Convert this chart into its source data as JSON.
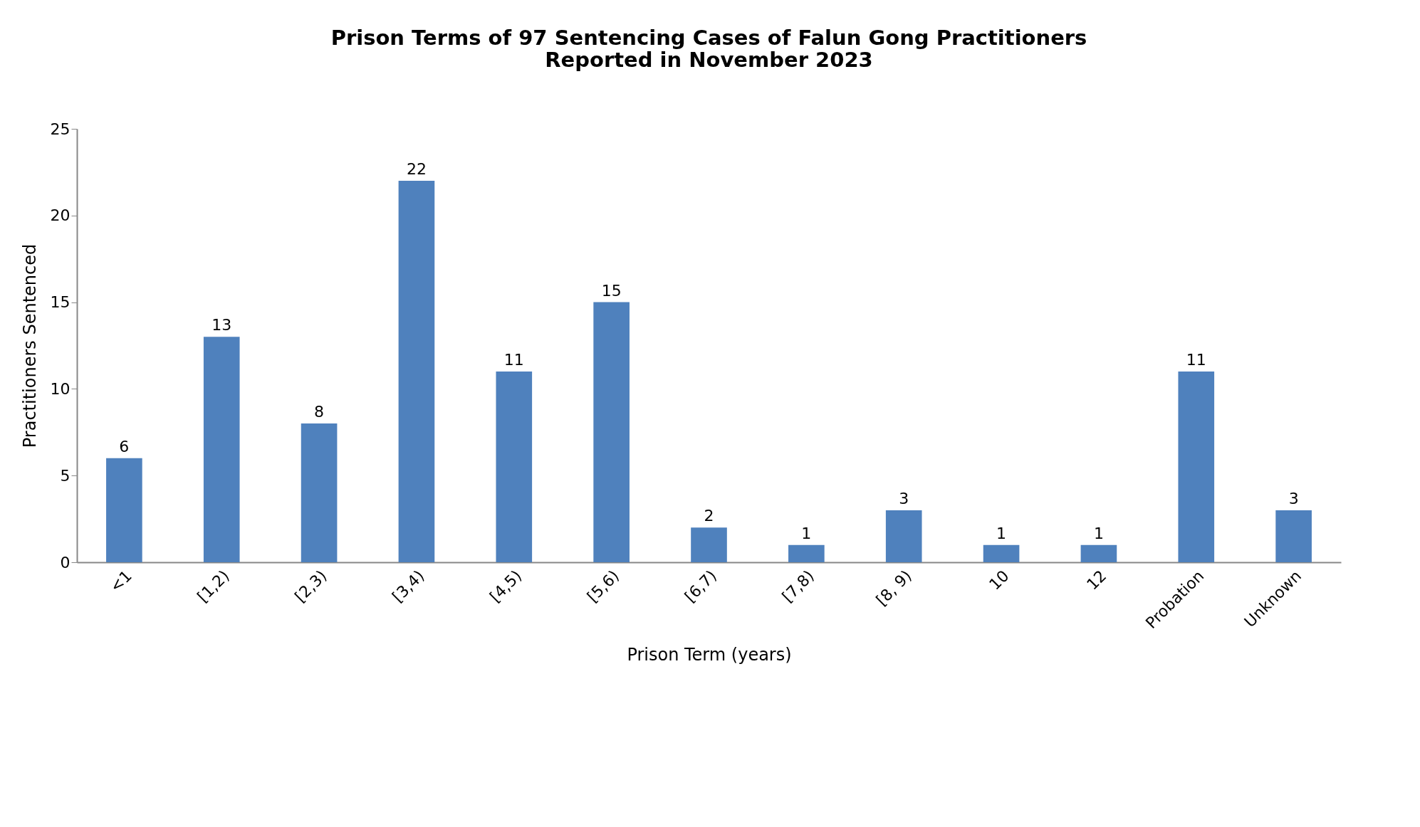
{
  "chart_data": {
    "type": "bar",
    "title": "Prison Terms of 97 Sentencing Cases of Falun Gong Practitioners Reported in November 2023",
    "xlabel": "Prison Term (years)",
    "ylabel": "Practitioners Sentenced",
    "categories": [
      "<1",
      "[1,2)",
      "[2,3)",
      "[3,4)",
      "[4,5)",
      "[5,6)",
      "[6,7)",
      "[7,8)",
      "[8, 9)",
      "10",
      "12",
      "Probation",
      "Unknown"
    ],
    "values": [
      6,
      13,
      8,
      22,
      11,
      15,
      2,
      1,
      3,
      1,
      1,
      11,
      3
    ],
    "color": "#4f81bd",
    "ylim": [
      0,
      25
    ],
    "yticks": [
      0,
      5,
      10,
      15,
      20,
      25
    ],
    "data_labels": true
  }
}
